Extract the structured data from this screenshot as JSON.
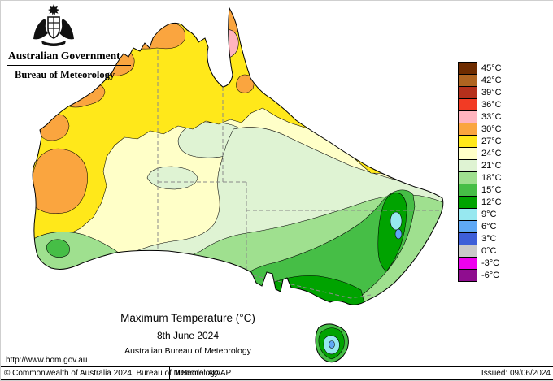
{
  "header": {
    "government": "Australian Government",
    "bureau": "Bureau of Meteorology"
  },
  "titles": {
    "main": "Maximum Temperature (°C)",
    "date": "8th June 2024",
    "org": "Australian Bureau of Meteorology"
  },
  "footer": {
    "url": "http://www.bom.gov.au",
    "copyright": "© Commonwealth of Australia 2024, Bureau of Meteorology",
    "id_code": "ID code: AWAP",
    "issued": "Issued: 09/06/2024"
  },
  "legend": {
    "entries": [
      {
        "label": "45°C",
        "color": "#6E2C00"
      },
      {
        "label": "42°C",
        "color": "#AF6420"
      },
      {
        "label": "39°C",
        "color": "#B5301C"
      },
      {
        "label": "36°C",
        "color": "#F23B24"
      },
      {
        "label": "33°C",
        "color": "#FFB4BE"
      },
      {
        "label": "30°C",
        "color": "#FAA53F"
      },
      {
        "label": "27°C",
        "color": "#FFE81A"
      },
      {
        "label": "24°C",
        "color": "#FFFFC8"
      },
      {
        "label": "21°C",
        "color": "#DFF3D3"
      },
      {
        "label": "18°C",
        "color": "#9FE08F"
      },
      {
        "label": "15°C",
        "color": "#46BE46"
      },
      {
        "label": "12°C",
        "color": "#00A300"
      },
      {
        "label": "9°C",
        "color": "#97E8F0"
      },
      {
        "label": "6°C",
        "color": "#5FA8F5"
      },
      {
        "label": "3°C",
        "color": "#3E5FD8"
      },
      {
        "label": "0°C",
        "color": "#C9C9C9"
      },
      {
        "label": "-3°C",
        "color": "#EE00EE"
      },
      {
        "label": "-6°C",
        "color": "#8F0D8F"
      }
    ]
  },
  "palette": {
    "t33": "#FFB4BE",
    "t30": "#FAA53F",
    "t27": "#FFE81A",
    "t24": "#FFFFC8",
    "t21": "#DFF3D3",
    "t18": "#9FE08F",
    "t15": "#46BE46",
    "t12": "#00A300",
    "t9": "#97E8F0",
    "t6": "#5FA8F5"
  }
}
